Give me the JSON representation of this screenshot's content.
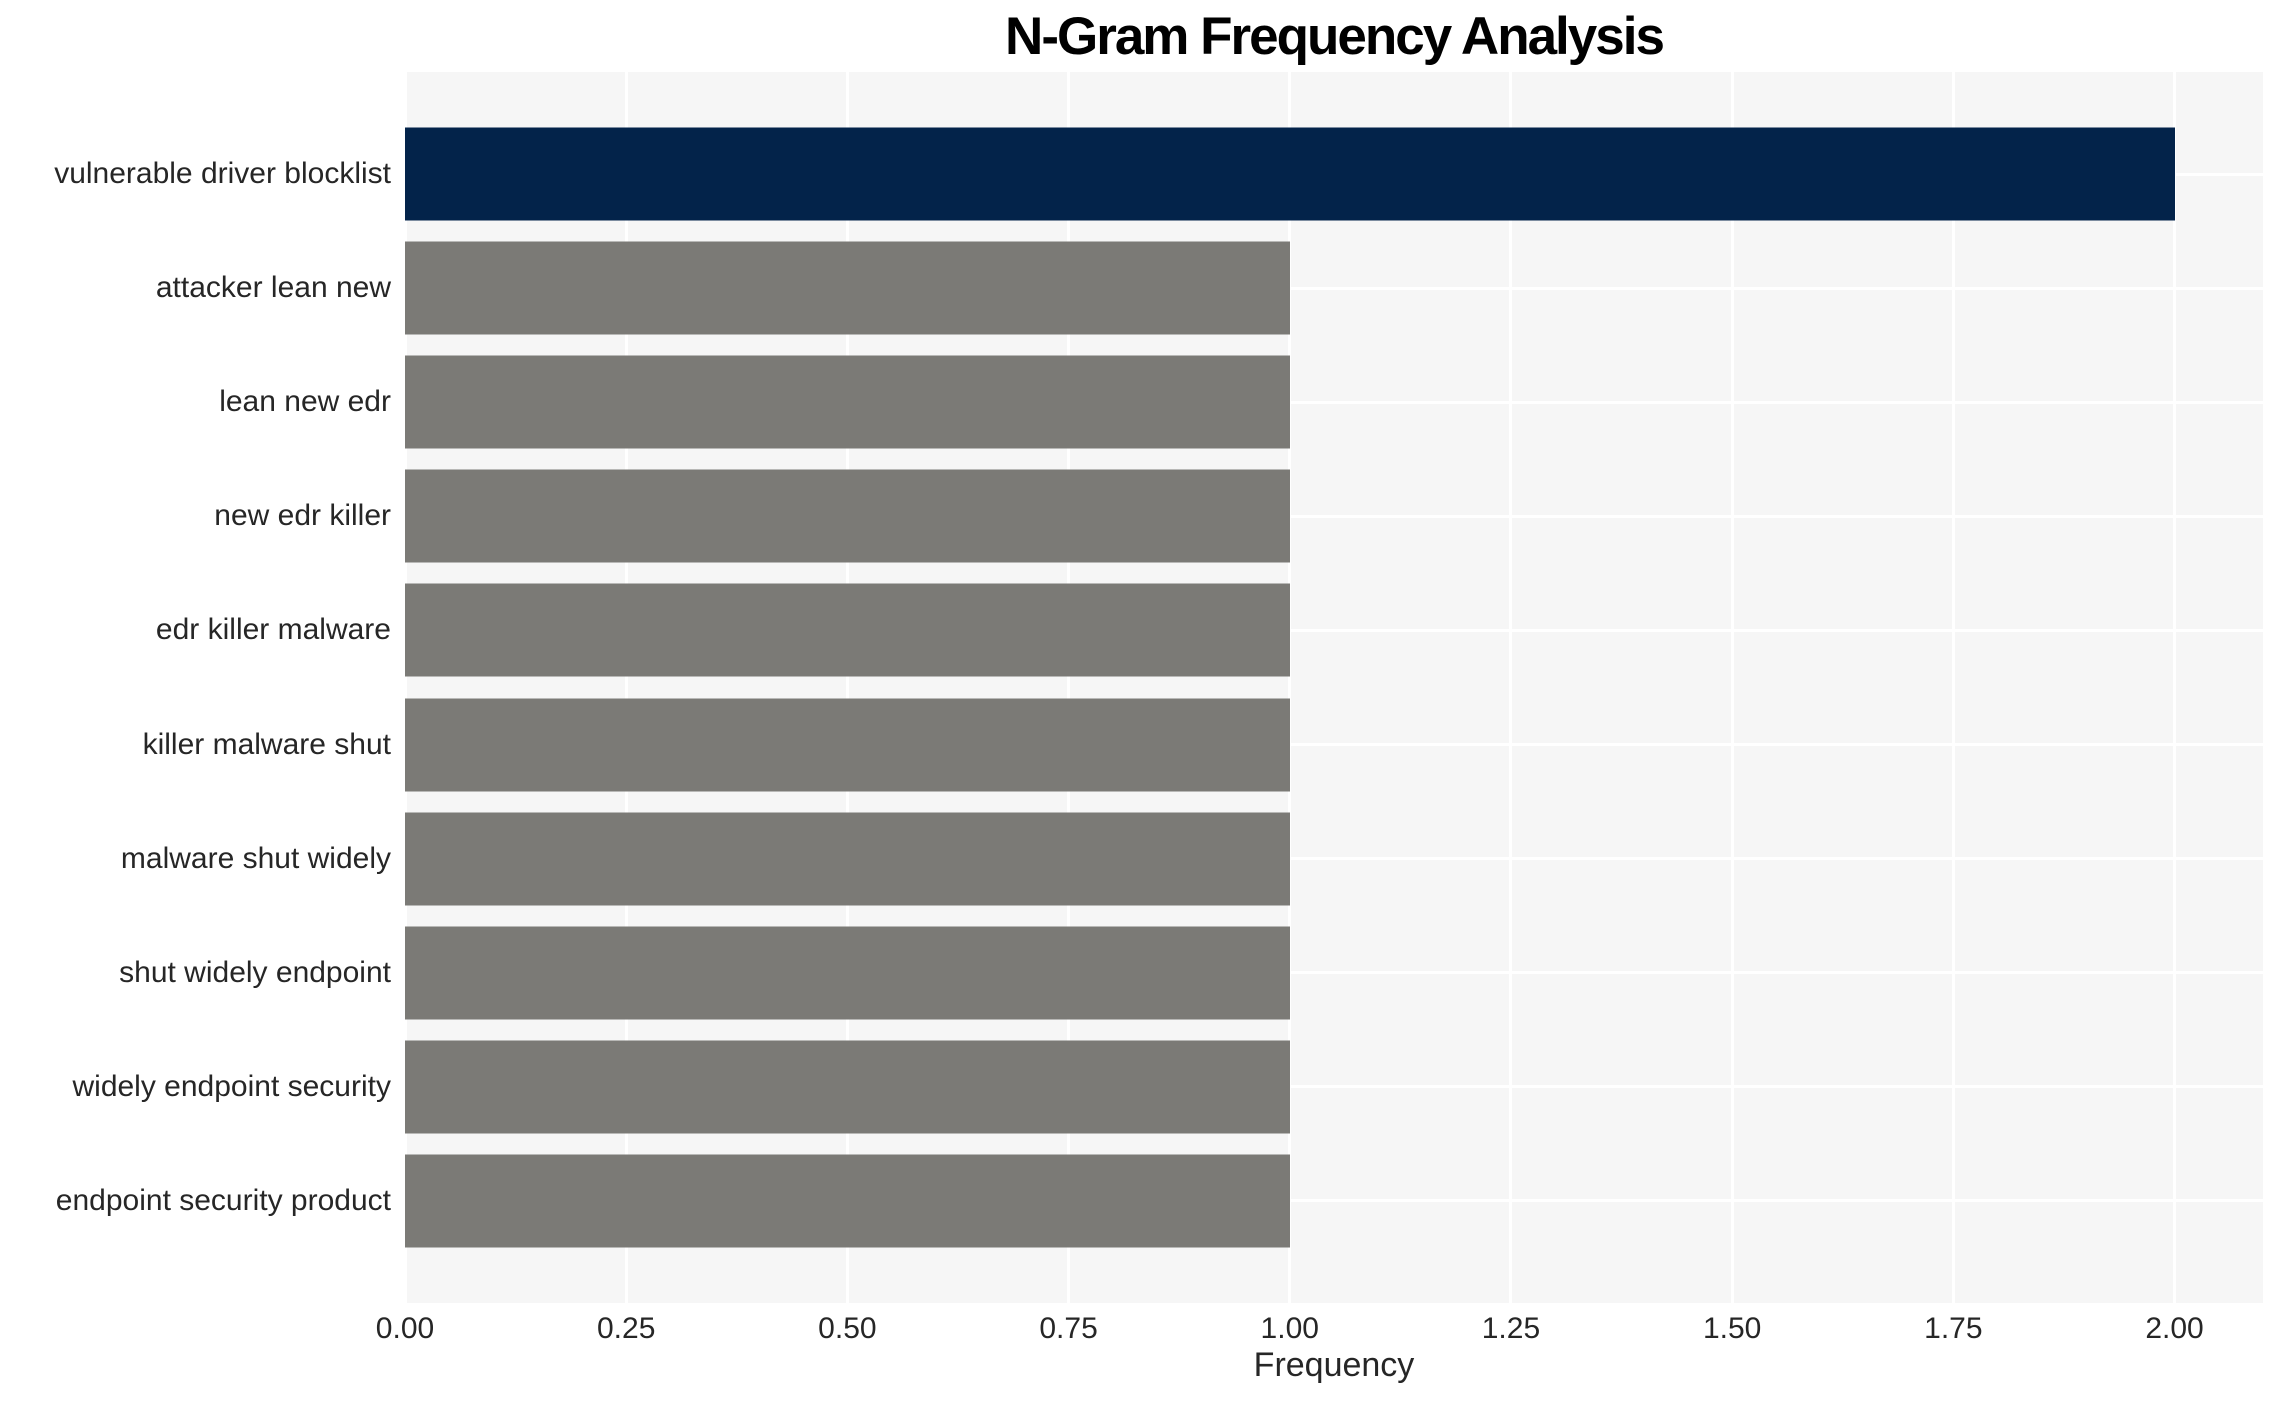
{
  "chart_data": {
    "type": "bar",
    "orientation": "horizontal",
    "title": "N-Gram Frequency Analysis",
    "xlabel": "Frequency",
    "ylabel": "",
    "categories": [
      "vulnerable driver blocklist",
      "attacker lean new",
      "lean new edr",
      "new edr killer",
      "edr killer malware",
      "killer malware shut",
      "malware shut widely",
      "shut widely endpoint",
      "widely endpoint security",
      "endpoint security product"
    ],
    "values": [
      2,
      1,
      1,
      1,
      1,
      1,
      1,
      1,
      1,
      1
    ],
    "bar_colors": [
      "#03234a",
      "#7b7a76",
      "#7b7a76",
      "#7b7a76",
      "#7b7a76",
      "#7b7a76",
      "#7b7a76",
      "#7b7a76",
      "#7b7a76",
      "#7b7a76"
    ],
    "xlim": [
      0,
      2.1
    ],
    "xticks": {
      "values": [
        0,
        0.25,
        0.5,
        0.75,
        1,
        1.25,
        1.5,
        1.75,
        2
      ],
      "labels": [
        "0.00",
        "0.25",
        "0.50",
        "0.75",
        "1.00",
        "1.25",
        "1.50",
        "1.75",
        "2.00"
      ]
    },
    "grid": true,
    "legend": false,
    "colors": {
      "highlight_bar": "#03234a",
      "default_bar": "#7b7a76",
      "plot_background": "#f6f6f6",
      "gridline": "#ffffff",
      "tick_text": "#262626",
      "title_text": "#000000"
    }
  }
}
